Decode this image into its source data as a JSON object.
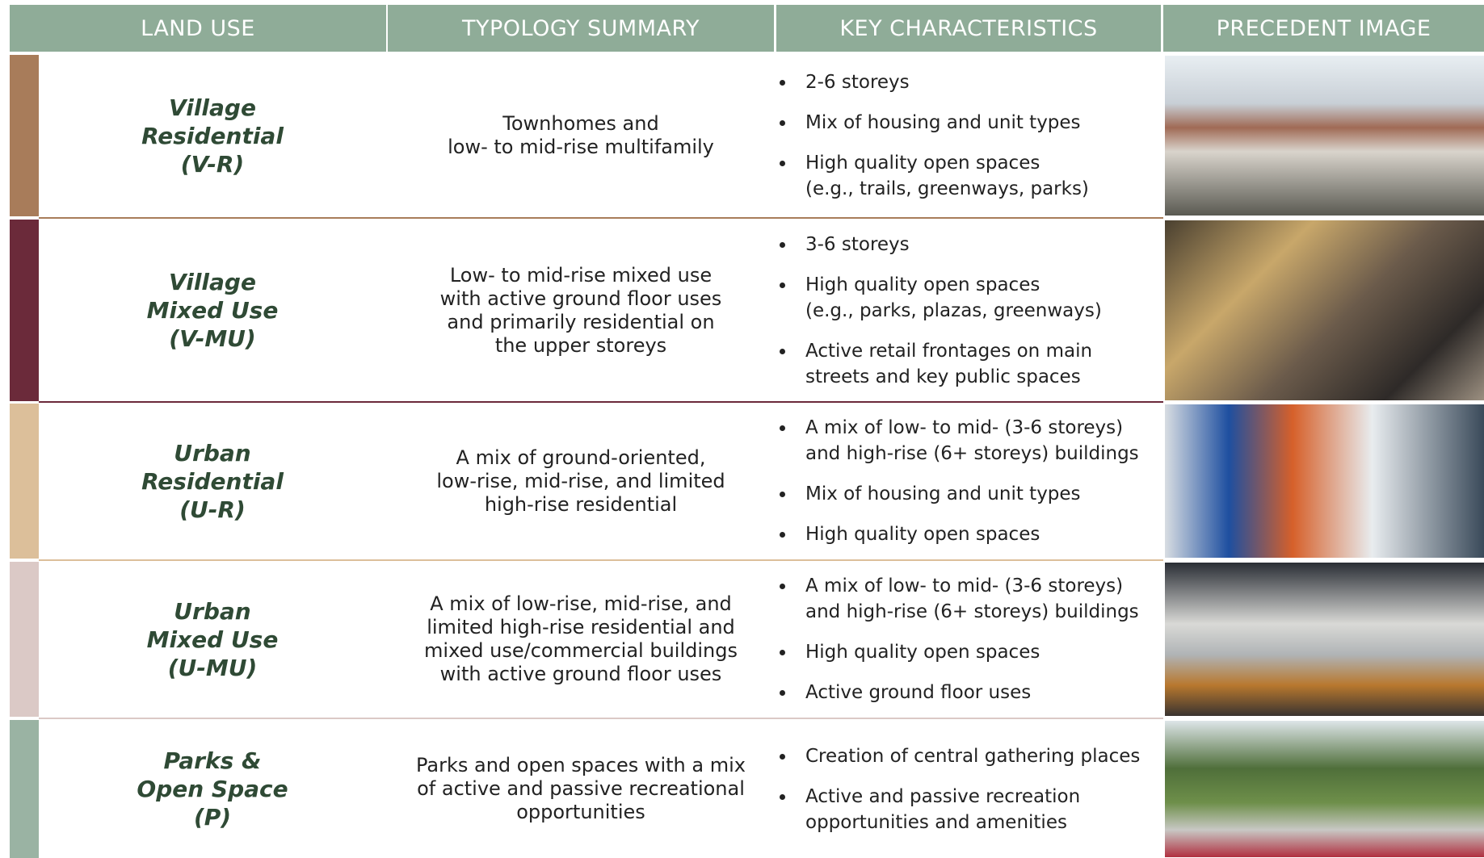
{
  "table": {
    "headers": [
      "LAND USE",
      "TYPOLOGY SUMMARY",
      "KEY CHARACTERISTICS",
      "PRECEDENT IMAGE"
    ],
    "rows": [
      {
        "color": "#a87c5a",
        "land_use": [
          "Village",
          "Residential",
          "(V-R)"
        ],
        "typology": [
          "Townhomes and",
          "low- to mid-rise multifamily"
        ],
        "characteristics": [
          [
            "2-6 storeys"
          ],
          [
            "Mix of housing and unit types"
          ],
          [
            "High quality open spaces",
            "(e.g., trails, greenways, parks)"
          ]
        ]
      },
      {
        "color": "#6b2a3a",
        "land_use": [
          "Village",
          "Mixed Use",
          "(V-MU)"
        ],
        "typology": [
          "Low- to mid-rise mixed use",
          "with active ground floor uses",
          "and primarily residential on",
          "the upper storeys"
        ],
        "characteristics": [
          [
            "3-6 storeys"
          ],
          [
            "High quality open spaces",
            "(e.g., parks, plazas, greenways)"
          ],
          [
            "Active retail frontages on main",
            "streets and key public spaces"
          ]
        ]
      },
      {
        "color": "#dcbf9a",
        "land_use": [
          "Urban",
          "Residential",
          "(U-R)"
        ],
        "typology": [
          "A mix of ground-oriented,",
          "low-rise, mid-rise, and limited",
          "high-rise residential"
        ],
        "characteristics": [
          [
            "A mix of low- to mid- (3-6 storeys)",
            "and high-rise (6+ storeys) buildings"
          ],
          [
            "Mix of housing and unit types"
          ],
          [
            "High quality open spaces"
          ]
        ]
      },
      {
        "color": "#dbc9c6",
        "land_use": [
          "Urban",
          "Mixed Use",
          "(U-MU)"
        ],
        "typology": [
          "A mix of low-rise, mid-rise, and",
          "limited high-rise residential and",
          "mixed use/commercial buildings",
          "with active ground floor uses"
        ],
        "characteristics": [
          [
            "A mix of low- to mid- (3-6 storeys)",
            "and high-rise (6+ storeys) buildings"
          ],
          [
            "High quality open spaces"
          ],
          [
            "Active ground floor uses"
          ]
        ]
      },
      {
        "color": "#9ab3a3",
        "land_use": [
          "Parks &",
          "Open Space",
          "(P)"
        ],
        "typology": [
          "Parks and open spaces with a mix",
          "of active and passive recreational",
          "opportunities"
        ],
        "characteristics": [
          [
            "Creation of central gathering places"
          ],
          [
            "Active and passive recreation",
            "opportunities and amenities"
          ]
        ]
      }
    ]
  }
}
